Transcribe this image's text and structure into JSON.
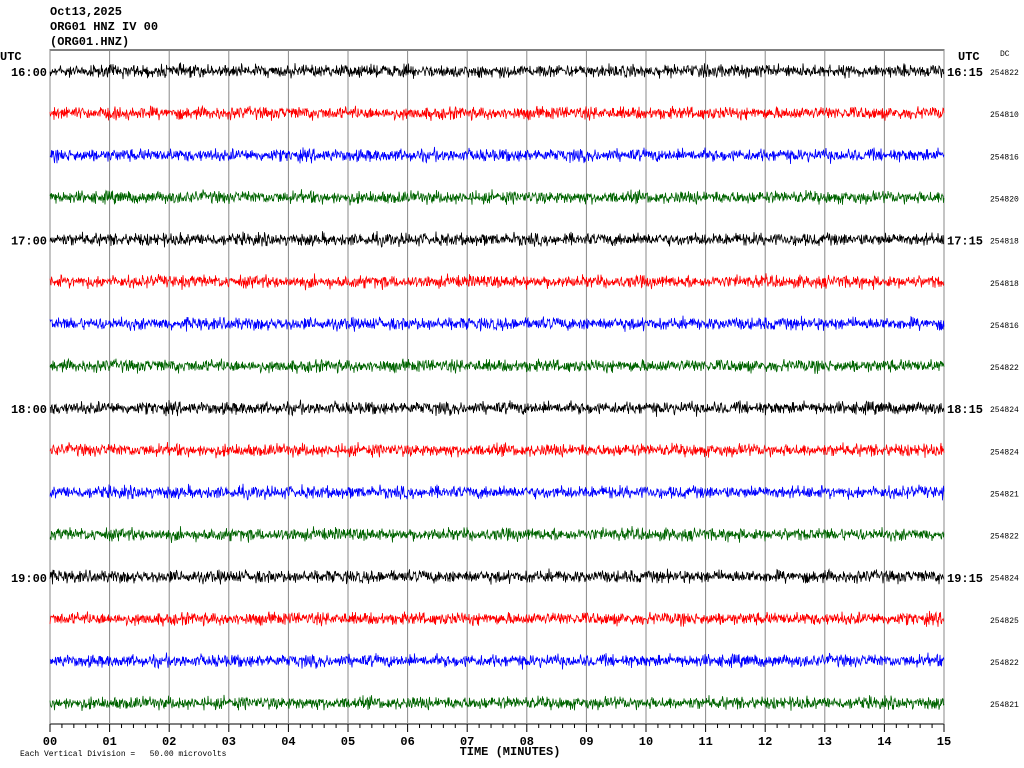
{
  "chart_data": {
    "type": "helicorder",
    "title_lines": [
      "Oct13,2025",
      "ORG01 HNZ IV 00",
      "(ORG01.HNZ)"
    ],
    "left_axis_label": "UTC",
    "right_axis_label": "UTC",
    "dc_label": "DC",
    "x_label": "TIME (MINUTES)",
    "footer": "Each Vertical Division =   50.00 microvolts",
    "xlim": [
      0,
      15
    ],
    "xticks": [
      {
        "value": 0,
        "label": "00"
      },
      {
        "value": 1,
        "label": "01"
      },
      {
        "value": 2,
        "label": "02"
      },
      {
        "value": 3,
        "label": "03"
      },
      {
        "value": 4,
        "label": "04"
      },
      {
        "value": 5,
        "label": "05"
      },
      {
        "value": 6,
        "label": "06"
      },
      {
        "value": 7,
        "label": "07"
      },
      {
        "value": 8,
        "label": "08"
      },
      {
        "value": 9,
        "label": "09"
      },
      {
        "value": 10,
        "label": "10"
      },
      {
        "value": 11,
        "label": "11"
      },
      {
        "value": 12,
        "label": "12"
      },
      {
        "value": 13,
        "label": "13"
      },
      {
        "value": 14,
        "label": "14"
      },
      {
        "value": 15,
        "label": "15"
      }
    ],
    "grid": true,
    "rows": [
      {
        "left": "16:00",
        "right": "16:15",
        "dc": 254822,
        "color": "#000000"
      },
      {
        "left": null,
        "right": null,
        "dc": 254810,
        "color": "#ff0000"
      },
      {
        "left": null,
        "right": null,
        "dc": 254816,
        "color": "#0000ff"
      },
      {
        "left": null,
        "right": null,
        "dc": 254820,
        "color": "#006400"
      },
      {
        "left": "17:00",
        "right": "17:15",
        "dc": 254818,
        "color": "#000000"
      },
      {
        "left": null,
        "right": null,
        "dc": 254818,
        "color": "#ff0000"
      },
      {
        "left": null,
        "right": null,
        "dc": 254816,
        "color": "#0000ff"
      },
      {
        "left": null,
        "right": null,
        "dc": 254822,
        "color": "#006400"
      },
      {
        "left": "18:00",
        "right": "18:15",
        "dc": 254824,
        "color": "#000000"
      },
      {
        "left": null,
        "right": null,
        "dc": 254824,
        "color": "#ff0000"
      },
      {
        "left": null,
        "right": null,
        "dc": 254821,
        "color": "#0000ff"
      },
      {
        "left": null,
        "right": null,
        "dc": 254822,
        "color": "#006400"
      },
      {
        "left": "19:00",
        "right": "19:15",
        "dc": 254824,
        "color": "#000000"
      },
      {
        "left": null,
        "right": null,
        "dc": 254825,
        "color": "#ff0000"
      },
      {
        "left": null,
        "right": null,
        "dc": 254822,
        "color": "#0000ff"
      },
      {
        "left": null,
        "right": null,
        "dc": 254821,
        "color": "#006400"
      }
    ]
  }
}
